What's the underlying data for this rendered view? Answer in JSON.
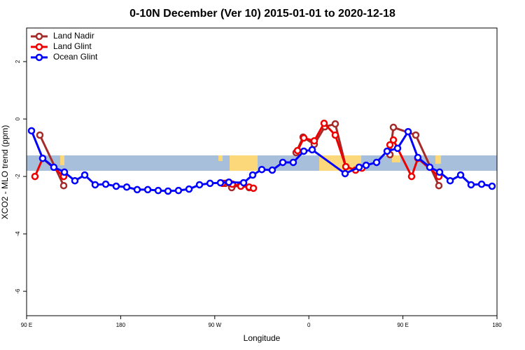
{
  "chart_data": {
    "type": "line",
    "title": "0-10N December (Ver 10)   2015-01-01 to 2020-12-18",
    "x_label": "Longitude",
    "y_label": "XCO2 - MLO trend (ppm)",
    "xlim": [
      90,
      540
    ],
    "xticks": [
      {
        "value": 90,
        "label": "90 E"
      },
      {
        "value": 180,
        "label": "180"
      },
      {
        "value": 270,
        "label": "90 W"
      },
      {
        "value": 360,
        "label": "0"
      },
      {
        "value": 450,
        "label": "90 E"
      },
      {
        "value": 540,
        "label": "180"
      }
    ],
    "ylim": [
      -6.85,
      3.17
    ],
    "yticks": [
      -6,
      -4,
      -2,
      0,
      2
    ],
    "legend": "top-left",
    "series": [
      {
        "name": "Land Nadir",
        "color": "#a52a2a",
        "x": [
          102.7,
          125.5,
          null,
          280.2,
          286.2,
          294.9,
          302.9,
          null,
          347.8,
          354.5,
          365.2,
          375.3,
          385.3,
          395.4,
          null,
          437.6,
          440.9,
          462.3,
          484.4
        ],
        "values": [
          -0.56,
          -2.32,
          null,
          -2.24,
          -2.39,
          -2.29,
          -2.39,
          null,
          -1.17,
          -0.63,
          -0.88,
          -0.27,
          -0.17,
          -1.66,
          null,
          -1.24,
          -0.29,
          -0.56,
          -2.32
        ]
      },
      {
        "name": "Land Glint",
        "color": "#ee0000",
        "x": [
          98.0,
          105.4,
          125.5,
          null,
          277.5,
          286.9,
          294.9,
          302.9,
          307.0,
          null,
          349.2,
          355.2,
          365.2,
          374.6,
          385.3,
          395.4,
          404.7,
          410.8,
          null,
          437.6,
          440.9,
          458.3,
          464.3,
          484.4
        ],
        "values": [
          -2.0,
          -1.37,
          -2.0,
          null,
          -2.24,
          -2.27,
          -2.34,
          -2.37,
          -2.41,
          null,
          -1.1,
          -0.66,
          -0.76,
          -0.15,
          -0.56,
          -1.66,
          -1.78,
          -1.71,
          null,
          -0.9,
          -0.73,
          -2.0,
          -1.37,
          -2.0
        ]
      },
      {
        "name": "Ocean Glint",
        "color": "#0000ff",
        "x": [
          94.7,
          105.4,
          116.1,
          126.2,
          136.2,
          145.6,
          155.6,
          165.7,
          175.7,
          185.8,
          195.8,
          205.9,
          215.9,
          225.3,
          235.3,
          245.4,
          255.4,
          265.5,
          275.5,
          283.5,
          297.6,
          306.3,
          315.0,
          325.0,
          335.1,
          345.1,
          355.2,
          363.2,
          394.7,
          408.1,
          414.8,
          424.8,
          434.9,
          444.9,
          455.0,
          464.3,
          475.7,
          485.1,
          495.2,
          505.2,
          515.2,
          525.3,
          535.3
        ],
        "values": [
          -0.41,
          -1.37,
          -1.68,
          -1.85,
          -2.15,
          -1.95,
          -2.29,
          -2.27,
          -2.34,
          -2.37,
          -2.46,
          -2.46,
          -2.49,
          -2.51,
          -2.49,
          -2.44,
          -2.29,
          -2.24,
          -2.22,
          -2.2,
          -2.22,
          -1.95,
          -1.76,
          -1.78,
          -1.51,
          -1.51,
          -1.12,
          -1.07,
          -1.9,
          -1.68,
          -1.61,
          -1.51,
          -1.12,
          -1.02,
          -0.44,
          -1.34,
          -1.68,
          -1.85,
          -2.15,
          -1.95,
          -2.29,
          -2.27,
          -2.34
        ]
      }
    ]
  }
}
